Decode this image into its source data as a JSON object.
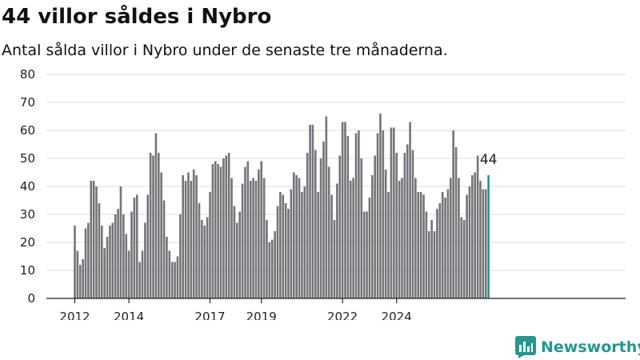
{
  "header": {
    "title": "44 villor såldes i Nybro",
    "subtitle": "Antal sålda villor i Nybro under de senaste tre månaderna."
  },
  "brand": {
    "name": "Newsworthy",
    "color": "#27968f"
  },
  "chart_data": {
    "type": "bar",
    "title": "44 villor såldes i Nybro",
    "subtitle": "Antal sålda villor i Nybro under de senaste tre månaderna.",
    "xlabel": "",
    "ylabel": "",
    "ylim": [
      0,
      80
    ],
    "yticks": [
      0,
      10,
      20,
      30,
      40,
      50,
      60,
      70,
      80
    ],
    "xticks": [
      "2012",
      "2014",
      "2017",
      "2019",
      "2022",
      "2024"
    ],
    "xtick_bar_index": [
      0,
      20,
      50,
      69,
      99,
      119
    ],
    "grid": true,
    "bar_color": "#757479",
    "highlight_color": "#27968f",
    "highlight_label": "44",
    "values": [
      26,
      17,
      12,
      14,
      25,
      27,
      42,
      42,
      40,
      34,
      26,
      18,
      22,
      26,
      27,
      30,
      32,
      40,
      30,
      23,
      17,
      31,
      36,
      37,
      13,
      17,
      27,
      37,
      52,
      51,
      59,
      52,
      45,
      35,
      22,
      17,
      13,
      13,
      15,
      30,
      44,
      42,
      45,
      42,
      46,
      44,
      34,
      28,
      26,
      29,
      38,
      48,
      49,
      48,
      47,
      50,
      51,
      52,
      43,
      33,
      27,
      31,
      41,
      47,
      49,
      42,
      43,
      42,
      46,
      49,
      43,
      28,
      20,
      21,
      24,
      33,
      38,
      37,
      34,
      32,
      39,
      45,
      44,
      43,
      38,
      40,
      52,
      62,
      62,
      53,
      38,
      50,
      56,
      65,
      47,
      37,
      28,
      41,
      51,
      63,
      63,
      58,
      42,
      43,
      59,
      60,
      50,
      31,
      31,
      36,
      44,
      51,
      59,
      66,
      60,
      46,
      38,
      61,
      61,
      52,
      42,
      43,
      52,
      55,
      63,
      53,
      43,
      38,
      38,
      37,
      31,
      24,
      28,
      24,
      32,
      34,
      38,
      36,
      39,
      43,
      60,
      54,
      43,
      29,
      28,
      37,
      40,
      44,
      45,
      51,
      42,
      39,
      39,
      44
    ]
  }
}
